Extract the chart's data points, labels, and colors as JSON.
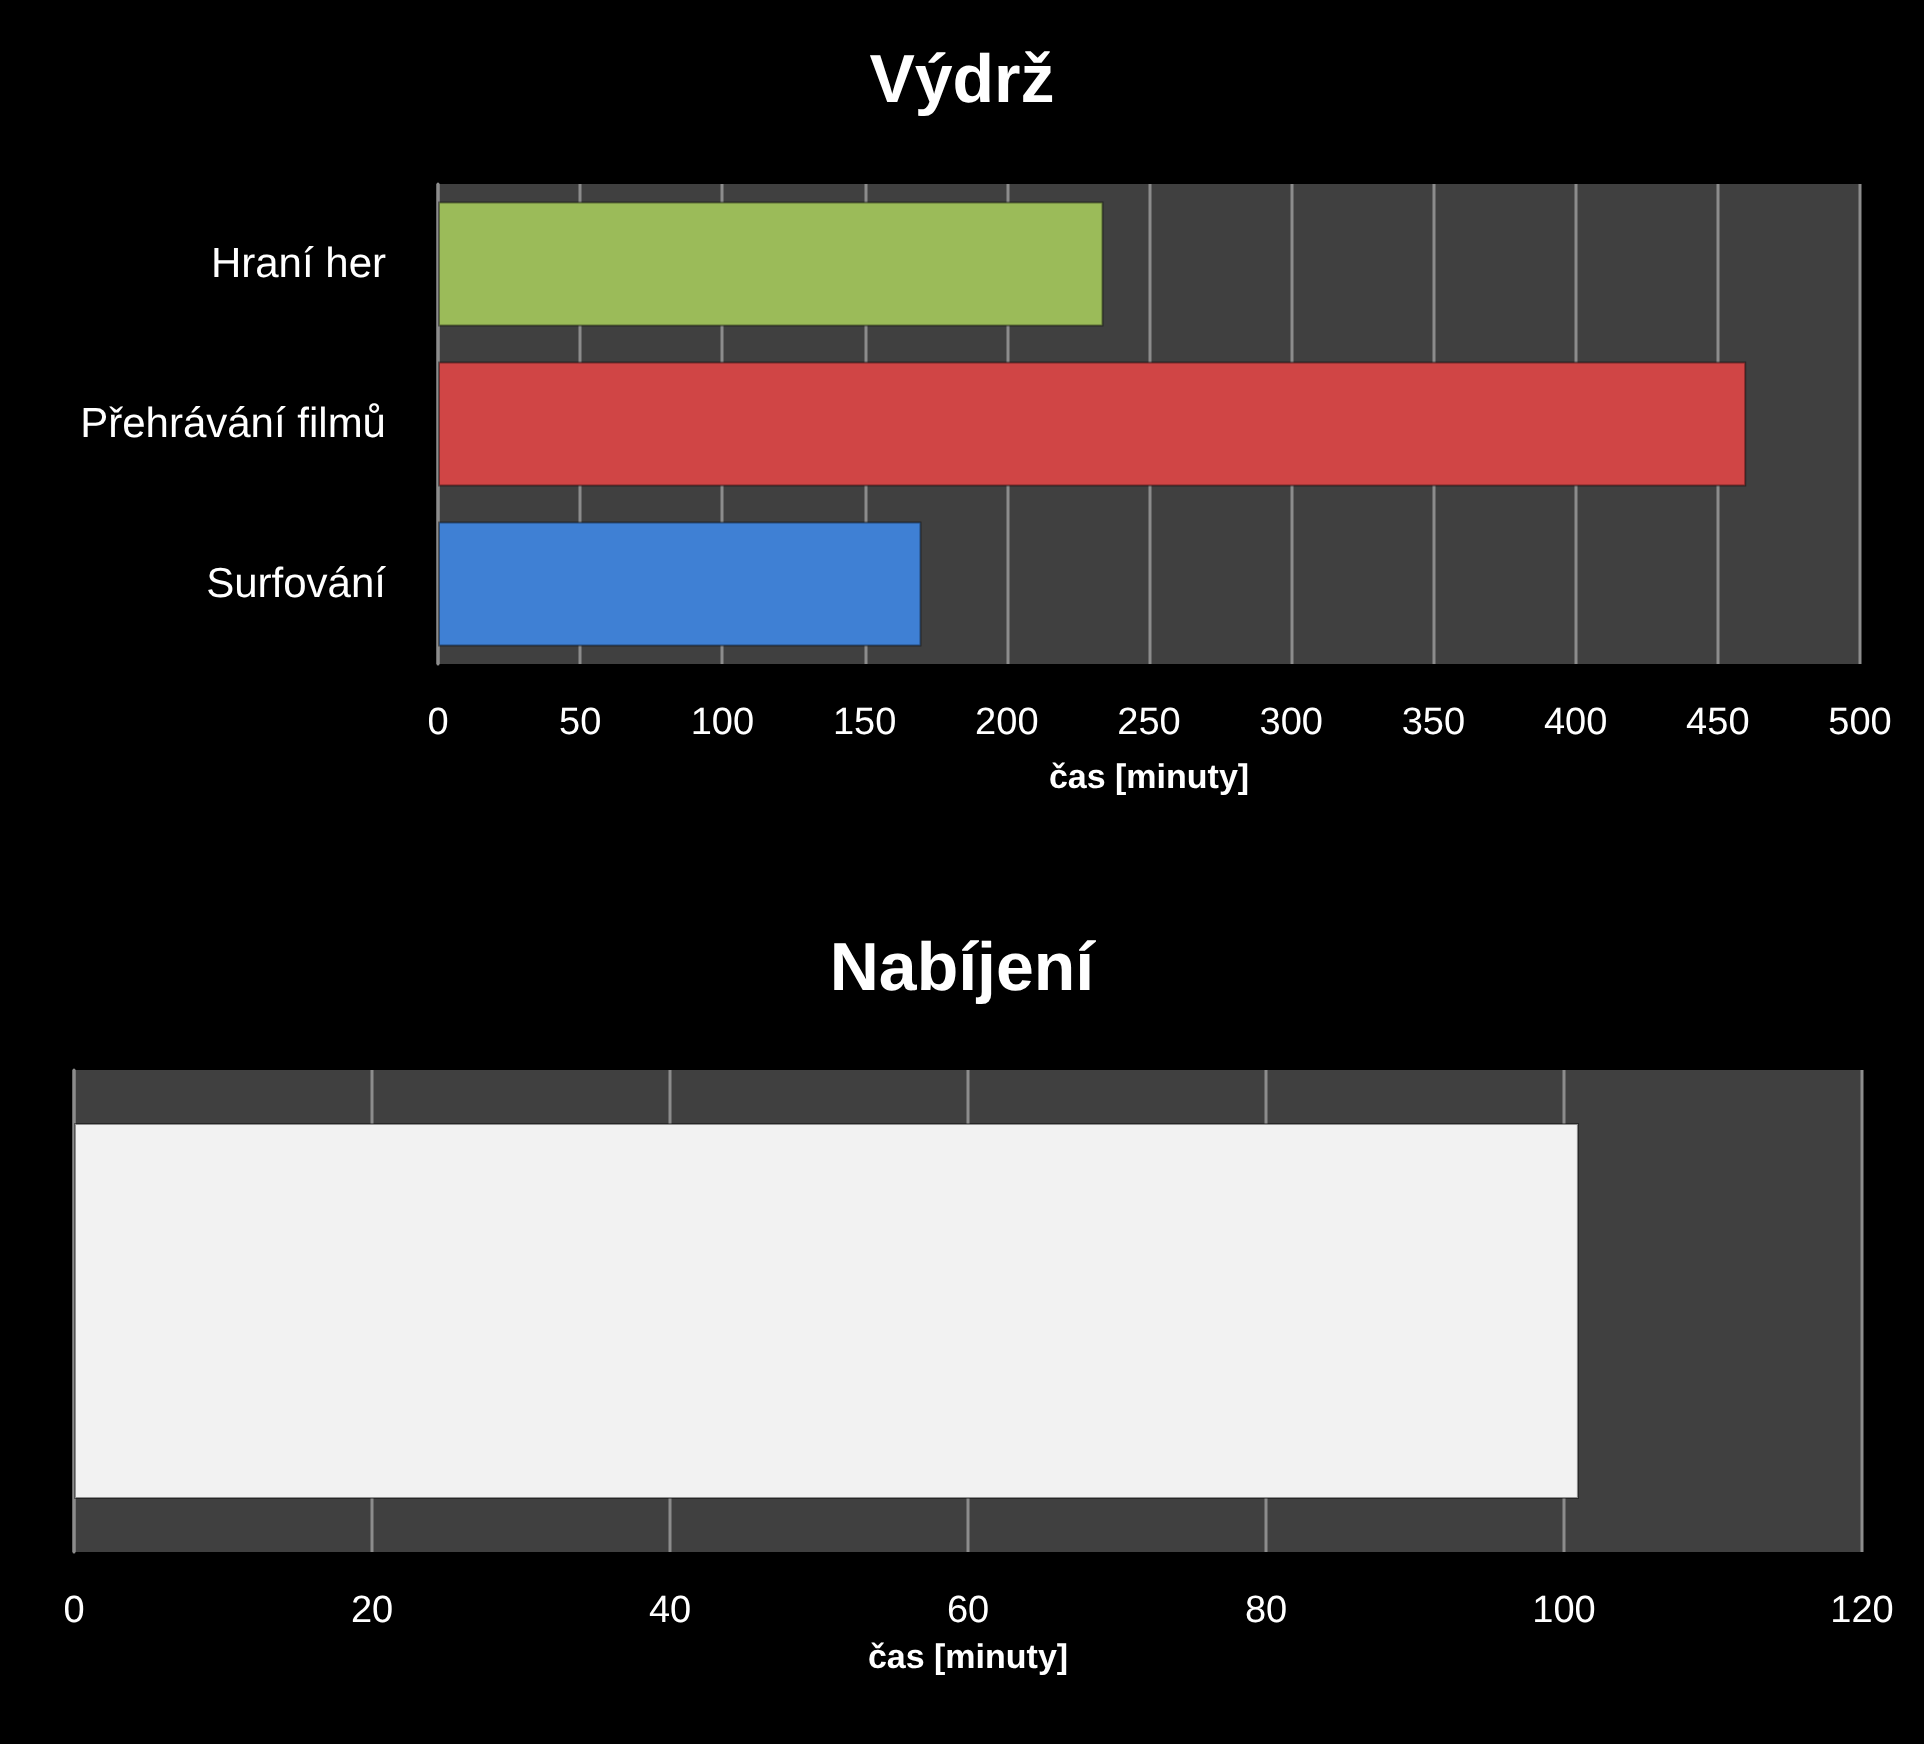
{
  "chart_data": [
    {
      "type": "bar",
      "title": "Výdrž",
      "orientation": "horizontal",
      "categories": [
        "Hraní her",
        "Přehrávání filmů",
        "Surfování"
      ],
      "values": [
        234,
        460,
        170
      ],
      "colors": [
        "#9bbb59",
        "#d04545",
        "#3f80d4"
      ],
      "xlabel": "čas [minuty]",
      "xlim": [
        0,
        500
      ],
      "xticks": [
        0,
        50,
        100,
        150,
        200,
        250,
        300,
        350,
        400,
        450,
        500
      ],
      "grid": "x"
    },
    {
      "type": "bar",
      "title": "Nabíjení",
      "orientation": "horizontal",
      "categories": [
        null
      ],
      "values": [
        101
      ],
      "colors": [
        "#f2f2f2"
      ],
      "xlabel": "čas [minuty]",
      "xlim": [
        0,
        120
      ],
      "xticks": [
        0,
        20,
        40,
        60,
        80,
        100,
        120
      ],
      "grid": "x"
    }
  ]
}
